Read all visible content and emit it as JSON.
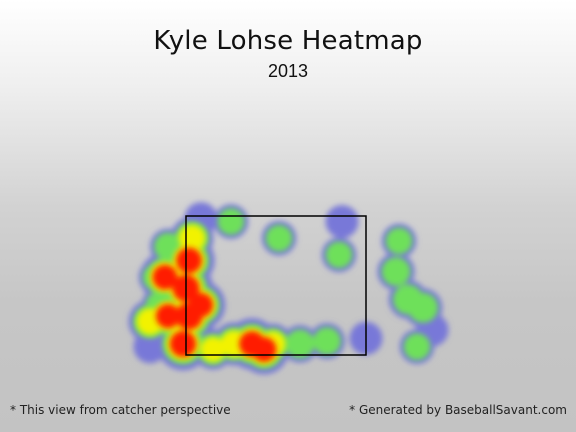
{
  "header": {
    "title": "Kyle Lohse Heatmap",
    "subtitle": "2013"
  },
  "footer": {
    "perspective_note": "* This view from catcher perspective",
    "credit": "* Generated by BaseballSavant.com"
  },
  "colors": {
    "low": "#7878d8",
    "mid_low": "#6ee05a",
    "mid": "#f2f200",
    "high": "#ff1e00",
    "strike_zone": "#000000"
  },
  "chart_data": {
    "type": "heatmap",
    "title": "Kyle Lohse Heatmap",
    "subtitle": "2013",
    "strike_zone": {
      "shown": true
    },
    "blobs": [
      {
        "x": -1.6,
        "y": 1.15,
        "intensity": 0.25
      },
      {
        "x": -1.45,
        "y": 1.9,
        "intensity": 0.3
      },
      {
        "x": -1.5,
        "y": 2.4,
        "intensity": 0.3
      },
      {
        "x": -1.3,
        "y": 2.95,
        "intensity": 0.35
      },
      {
        "x": -0.75,
        "y": 3.45,
        "intensity": 0.25
      },
      {
        "x": -0.9,
        "y": 3.1,
        "intensity": 0.6
      },
      {
        "x": -0.25,
        "y": 3.4,
        "intensity": 0.3
      },
      {
        "x": 0.55,
        "y": 3.1,
        "intensity": 0.3
      },
      {
        "x": 1.6,
        "y": 3.4,
        "intensity": 0.25
      },
      {
        "x": 1.55,
        "y": 2.8,
        "intensity": 0.3
      },
      {
        "x": 2.55,
        "y": 3.05,
        "intensity": 0.3
      },
      {
        "x": 2.5,
        "y": 2.5,
        "intensity": 0.4
      },
      {
        "x": 2.7,
        "y": 2.0,
        "intensity": 0.45
      },
      {
        "x": 2.95,
        "y": 1.85,
        "intensity": 0.45
      },
      {
        "x": 3.1,
        "y": 1.45,
        "intensity": 0.25
      },
      {
        "x": 2.85,
        "y": 1.15,
        "intensity": 0.3
      },
      {
        "x": 2.0,
        "y": 1.3,
        "intensity": 0.25
      },
      {
        "x": 1.35,
        "y": 1.25,
        "intensity": 0.35
      },
      {
        "x": 0.9,
        "y": 1.2,
        "intensity": 0.4
      },
      {
        "x": 0.45,
        "y": 1.2,
        "intensity": 0.5
      },
      {
        "x": -0.2,
        "y": 1.2,
        "intensity": 0.6
      },
      {
        "x": -0.55,
        "y": 1.1,
        "intensity": 0.5
      },
      {
        "x": 0.1,
        "y": 1.2,
        "intensity": 0.9
      },
      {
        "x": 0.3,
        "y": 1.1,
        "intensity": 0.85
      },
      {
        "x": -1.05,
        "y": 1.2,
        "intensity": 0.95
      },
      {
        "x": -0.95,
        "y": 1.7,
        "intensity": 1.0
      },
      {
        "x": -1.0,
        "y": 2.2,
        "intensity": 1.0
      },
      {
        "x": -0.95,
        "y": 2.7,
        "intensity": 0.9
      },
      {
        "x": -1.35,
        "y": 2.4,
        "intensity": 0.85
      },
      {
        "x": -1.3,
        "y": 1.7,
        "intensity": 0.8
      },
      {
        "x": -1.6,
        "y": 1.6,
        "intensity": 0.6
      },
      {
        "x": -0.75,
        "y": 1.9,
        "intensity": 0.8
      }
    ]
  }
}
